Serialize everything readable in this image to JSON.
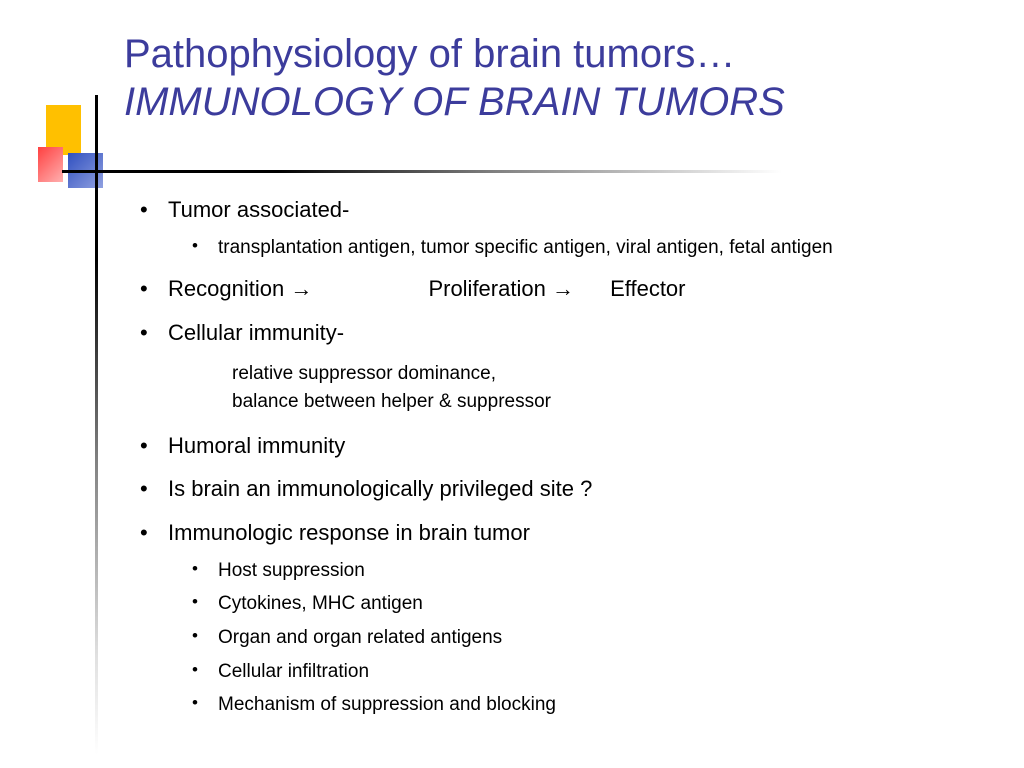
{
  "colors": {
    "title": "#3c3c9c",
    "body": "#000000",
    "bg": "#ffffff",
    "deco_yellow": "#ffc000",
    "deco_red_start": "#ff4040",
    "deco_blue_start": "#3050c0"
  },
  "title": {
    "line1": "Pathophysiology of brain tumors…",
    "line2": "IMMUNOLOGY OF BRAIN TUMORS"
  },
  "bullets": {
    "b1": {
      "text": "Tumor associated-",
      "sub": [
        "transplantation antigen, tumor specific antigen, viral antigen, fetal antigen"
      ]
    },
    "b2": {
      "parts": [
        "Recognition",
        "Proliferation",
        "Effector"
      ],
      "arrow": "→"
    },
    "b3": {
      "text": "Cellular immunity-",
      "subtext": [
        "relative suppressor dominance,",
        "balance between helper & suppressor"
      ]
    },
    "b4": {
      "text": "Humoral immunity"
    },
    "b5": {
      "text": "Is brain an immunologically privileged site ?"
    },
    "b6": {
      "text": "Immunologic response in brain tumor",
      "sub": [
        "Host suppression",
        "Cytokines, MHC antigen",
        "Organ and organ related antigens",
        "Cellular infiltration",
        "Mechanism of suppression and blocking"
      ]
    }
  }
}
